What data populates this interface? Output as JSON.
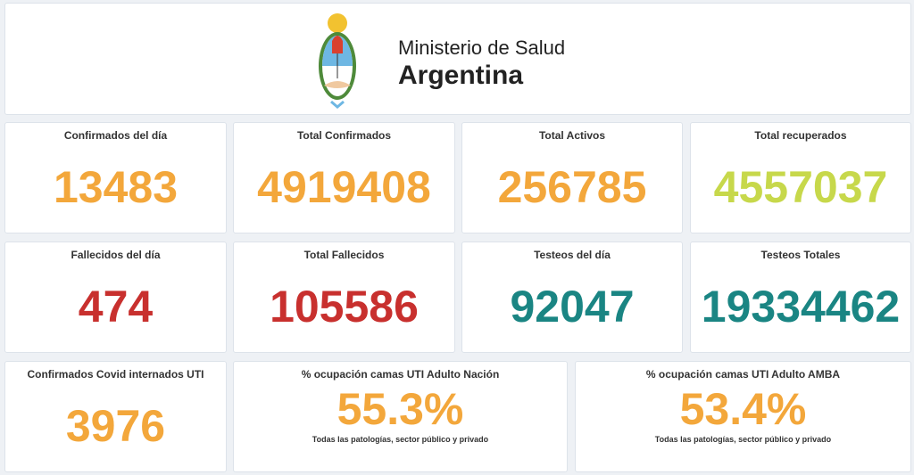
{
  "header": {
    "line1": "Ministerio de Salud",
    "line2": "Argentina",
    "emblem": "argentina-coat-of-arms"
  },
  "colors": {
    "orange": "#f3a73b",
    "green": "#c7d84b",
    "red": "#c8302e",
    "teal": "#1a8583"
  },
  "cards": [
    {
      "title": "Confirmados del día",
      "value": "13483",
      "color": "#f3a73b"
    },
    {
      "title": "Total Confirmados",
      "value": "4919408",
      "color": "#f3a73b"
    },
    {
      "title": "Total Activos",
      "value": "256785",
      "color": "#f3a73b"
    },
    {
      "title": "Total recuperados",
      "value": "4557037",
      "color": "#c7d84b"
    },
    {
      "title": "Fallecidos del día",
      "value": "474",
      "color": "#c8302e"
    },
    {
      "title": "Total Fallecidos",
      "value": "105586",
      "color": "#c8302e"
    },
    {
      "title": "Testeos del día",
      "value": "92047",
      "color": "#1a8583"
    },
    {
      "title": "Testeos Totales",
      "value": "19334462",
      "color": "#1a8583"
    },
    {
      "title": "Confirmados Covid internados UTI",
      "value": "3976",
      "color": "#f3a73b"
    },
    {
      "title": "% ocupación camas UTI Adulto Nación",
      "value": "55.3%",
      "subtitle": "Todas las patologías, sector público y privado",
      "color": "#f3a73b"
    },
    {
      "title": "% ocupación camas UTI Adulto AMBA",
      "value": "53.4%",
      "subtitle": "Todas las patologías, sector público y privado",
      "color": "#f3a73b"
    }
  ]
}
